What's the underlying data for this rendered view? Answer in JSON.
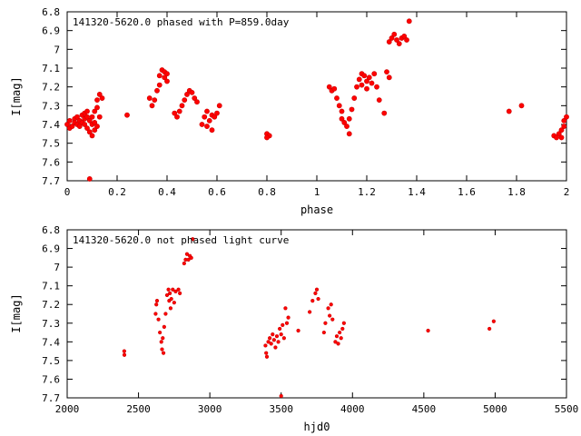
{
  "colors": {
    "points": "#ff0000",
    "axes": "#000000",
    "background": "#ffffff"
  },
  "chart_data": [
    {
      "type": "scatter",
      "title": "141320-5620.0 phased with P=859.0day",
      "xlabel": "phase",
      "ylabel": "I[mag]",
      "xlim": [
        0,
        2
      ],
      "ylim": [
        6.8,
        7.7
      ],
      "y_inverted": true,
      "grid": false,
      "x_ticks": [
        "0",
        "0.2",
        "0.4",
        "0.6",
        "0.8",
        "1",
        "1.2",
        "1.4",
        "1.6",
        "1.8",
        "2"
      ],
      "y_ticks": [
        "6.8",
        "6.9",
        "7",
        "7.1",
        "7.2",
        "7.3",
        "7.4",
        "7.5",
        "7.6",
        "7.7"
      ],
      "x_tick_values": [
        0,
        0.2,
        0.4,
        0.6,
        0.8,
        1,
        1.2,
        1.4,
        1.6,
        1.8,
        2
      ],
      "y_tick_values": [
        6.8,
        6.9,
        7.0,
        7.1,
        7.2,
        7.3,
        7.4,
        7.5,
        7.6,
        7.7
      ],
      "points": [
        [
          0.0,
          7.4
        ],
        [
          0.01,
          7.38
        ],
        [
          0.01,
          7.42
        ],
        [
          0.02,
          7.41
        ],
        [
          0.03,
          7.37
        ],
        [
          0.03,
          7.39
        ],
        [
          0.04,
          7.4
        ],
        [
          0.04,
          7.36
        ],
        [
          0.05,
          7.38
        ],
        [
          0.05,
          7.41
        ],
        [
          0.06,
          7.35
        ],
        [
          0.06,
          7.39
        ],
        [
          0.07,
          7.34
        ],
        [
          0.07,
          7.37
        ],
        [
          0.07,
          7.4
        ],
        [
          0.08,
          7.33
        ],
        [
          0.08,
          7.36
        ],
        [
          0.08,
          7.42
        ],
        [
          0.09,
          7.38
        ],
        [
          0.09,
          7.44
        ],
        [
          0.1,
          7.4
        ],
        [
          0.1,
          7.36
        ],
        [
          0.1,
          7.46
        ],
        [
          0.11,
          7.43
        ],
        [
          0.11,
          7.39
        ],
        [
          0.11,
          7.33
        ],
        [
          0.12,
          7.27
        ],
        [
          0.12,
          7.31
        ],
        [
          0.12,
          7.41
        ],
        [
          0.13,
          7.24
        ],
        [
          0.13,
          7.36
        ],
        [
          0.14,
          7.26
        ],
        [
          0.09,
          7.69
        ],
        [
          0.24,
          7.35
        ],
        [
          0.33,
          7.26
        ],
        [
          0.34,
          7.3
        ],
        [
          0.35,
          7.27
        ],
        [
          0.36,
          7.22
        ],
        [
          0.37,
          7.19
        ],
        [
          0.37,
          7.14
        ],
        [
          0.38,
          7.11
        ],
        [
          0.39,
          7.12
        ],
        [
          0.39,
          7.15
        ],
        [
          0.4,
          7.13
        ],
        [
          0.4,
          7.17
        ],
        [
          0.43,
          7.34
        ],
        [
          0.44,
          7.36
        ],
        [
          0.45,
          7.33
        ],
        [
          0.46,
          7.3
        ],
        [
          0.47,
          7.27
        ],
        [
          0.48,
          7.24
        ],
        [
          0.49,
          7.22
        ],
        [
          0.5,
          7.23
        ],
        [
          0.51,
          7.26
        ],
        [
          0.52,
          7.28
        ],
        [
          0.54,
          7.4
        ],
        [
          0.55,
          7.36
        ],
        [
          0.56,
          7.33
        ],
        [
          0.56,
          7.41
        ],
        [
          0.57,
          7.38
        ],
        [
          0.58,
          7.35
        ],
        [
          0.58,
          7.43
        ],
        [
          0.59,
          7.36
        ],
        [
          0.6,
          7.34
        ],
        [
          0.61,
          7.3
        ],
        [
          0.8,
          7.45
        ],
        [
          0.81,
          7.46
        ],
        [
          0.8,
          7.47
        ],
        [
          1.05,
          7.2
        ],
        [
          1.06,
          7.22
        ],
        [
          1.07,
          7.21
        ],
        [
          1.08,
          7.26
        ],
        [
          1.09,
          7.3
        ],
        [
          1.1,
          7.33
        ],
        [
          1.1,
          7.37
        ],
        [
          1.11,
          7.39
        ],
        [
          1.12,
          7.41
        ],
        [
          1.13,
          7.45
        ],
        [
          1.13,
          7.37
        ],
        [
          1.14,
          7.32
        ],
        [
          1.15,
          7.26
        ],
        [
          1.16,
          7.2
        ],
        [
          1.17,
          7.16
        ],
        [
          1.18,
          7.13
        ],
        [
          1.18,
          7.19
        ],
        [
          1.19,
          7.14
        ],
        [
          1.2,
          7.17
        ],
        [
          1.2,
          7.21
        ],
        [
          1.21,
          7.15
        ],
        [
          1.22,
          7.18
        ],
        [
          1.23,
          7.13
        ],
        [
          1.24,
          7.2
        ],
        [
          1.25,
          7.27
        ],
        [
          1.27,
          7.34
        ],
        [
          1.28,
          7.12
        ],
        [
          1.29,
          7.15
        ],
        [
          1.29,
          6.96
        ],
        [
          1.3,
          6.94
        ],
        [
          1.31,
          6.92
        ],
        [
          1.32,
          6.95
        ],
        [
          1.33,
          6.97
        ],
        [
          1.34,
          6.94
        ],
        [
          1.35,
          6.93
        ],
        [
          1.36,
          6.95
        ],
        [
          1.37,
          6.85
        ],
        [
          1.77,
          7.33
        ],
        [
          1.82,
          7.3
        ],
        [
          1.95,
          7.46
        ],
        [
          1.96,
          7.47
        ],
        [
          1.97,
          7.45
        ],
        [
          1.98,
          7.43
        ],
        [
          1.98,
          7.47
        ],
        [
          1.99,
          7.41
        ],
        [
          1.99,
          7.38
        ],
        [
          2.0,
          7.36
        ]
      ]
    },
    {
      "type": "scatter",
      "title": "141320-5620.0 not phased light curve",
      "xlabel": "hjd0",
      "ylabel": "I[mag]",
      "xlim": [
        2000,
        5500
      ],
      "ylim": [
        6.8,
        7.7
      ],
      "y_inverted": true,
      "grid": false,
      "x_ticks": [
        "2000",
        "2500",
        "3000",
        "3500",
        "4000",
        "4500",
        "5000",
        "5500"
      ],
      "y_ticks": [
        "6.8",
        "6.9",
        "7",
        "7.1",
        "7.2",
        "7.3",
        "7.4",
        "7.5",
        "7.6",
        "7.7"
      ],
      "x_tick_values": [
        2000,
        2500,
        3000,
        3500,
        4000,
        4500,
        5000,
        5500
      ],
      "y_tick_values": [
        6.8,
        6.9,
        7.0,
        7.1,
        7.2,
        7.3,
        7.4,
        7.5,
        7.6,
        7.7
      ],
      "points": [
        [
          2400,
          7.45
        ],
        [
          2401,
          7.47
        ],
        [
          2620,
          7.25
        ],
        [
          2625,
          7.2
        ],
        [
          2630,
          7.18
        ],
        [
          2640,
          7.28
        ],
        [
          2650,
          7.35
        ],
        [
          2660,
          7.4
        ],
        [
          2665,
          7.44
        ],
        [
          2670,
          7.38
        ],
        [
          2675,
          7.46
        ],
        [
          2680,
          7.32
        ],
        [
          2690,
          7.25
        ],
        [
          2700,
          7.15
        ],
        [
          2710,
          7.12
        ],
        [
          2715,
          7.18
        ],
        [
          2720,
          7.14
        ],
        [
          2725,
          7.22
        ],
        [
          2730,
          7.17
        ],
        [
          2740,
          7.12
        ],
        [
          2750,
          7.19
        ],
        [
          2760,
          7.13
        ],
        [
          2780,
          7.12
        ],
        [
          2790,
          7.14
        ],
        [
          2820,
          6.98
        ],
        [
          2830,
          6.96
        ],
        [
          2840,
          6.93
        ],
        [
          2850,
          6.96
        ],
        [
          2860,
          6.94
        ],
        [
          2870,
          6.95
        ],
        [
          2880,
          6.85
        ],
        [
          3390,
          7.42
        ],
        [
          3395,
          7.46
        ],
        [
          3400,
          7.48
        ],
        [
          3410,
          7.4
        ],
        [
          3420,
          7.38
        ],
        [
          3430,
          7.41
        ],
        [
          3440,
          7.36
        ],
        [
          3450,
          7.39
        ],
        [
          3460,
          7.43
        ],
        [
          3470,
          7.37
        ],
        [
          3480,
          7.4
        ],
        [
          3490,
          7.33
        ],
        [
          3500,
          7.36
        ],
        [
          3510,
          7.31
        ],
        [
          3520,
          7.38
        ],
        [
          3530,
          7.22
        ],
        [
          3540,
          7.3
        ],
        [
          3550,
          7.27
        ],
        [
          3500,
          7.69
        ],
        [
          3620,
          7.34
        ],
        [
          3700,
          7.24
        ],
        [
          3720,
          7.18
        ],
        [
          3740,
          7.14
        ],
        [
          3750,
          7.12
        ],
        [
          3760,
          7.17
        ],
        [
          3800,
          7.35
        ],
        [
          3810,
          7.3
        ],
        [
          3830,
          7.22
        ],
        [
          3840,
          7.26
        ],
        [
          3850,
          7.2
        ],
        [
          3860,
          7.28
        ],
        [
          3880,
          7.4
        ],
        [
          3890,
          7.37
        ],
        [
          3900,
          7.41
        ],
        [
          3910,
          7.35
        ],
        [
          3920,
          7.38
        ],
        [
          3930,
          7.33
        ],
        [
          3940,
          7.3
        ],
        [
          4530,
          7.34
        ],
        [
          4960,
          7.33
        ],
        [
          4990,
          7.29
        ]
      ]
    }
  ]
}
